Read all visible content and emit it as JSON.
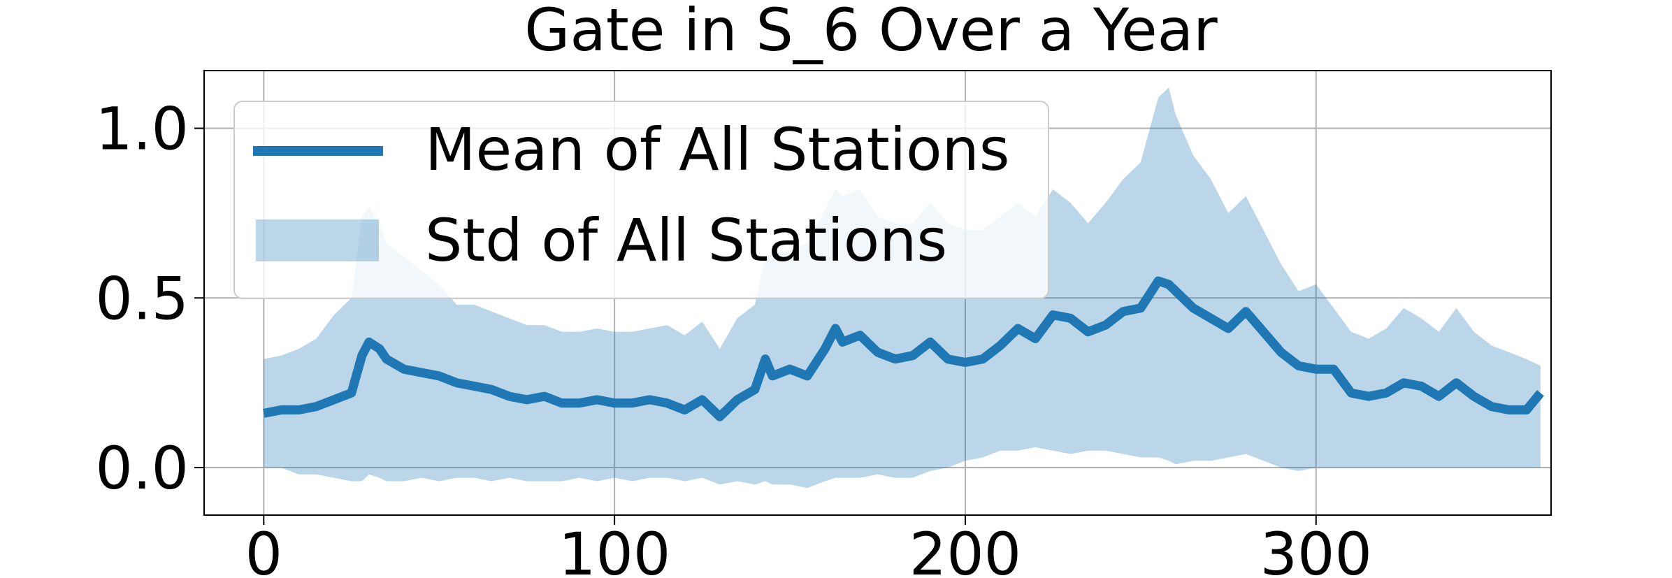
{
  "chart_data": {
    "type": "line",
    "title": "Gate in S_6 Over a Year",
    "xlabel": "",
    "ylabel": "",
    "xlim": [
      -17,
      367
    ],
    "ylim": [
      -0.14,
      1.17
    ],
    "xticks": [
      0,
      100,
      200,
      300
    ],
    "yticks": [
      0.0,
      0.5,
      1.0
    ],
    "xtick_labels": [
      "0",
      "100",
      "200",
      "300"
    ],
    "ytick_labels": [
      "0.0",
      "0.5",
      "1.0"
    ],
    "grid": true,
    "legend": {
      "placement": "upper-left",
      "entries": [
        {
          "label": "Mean of All Stations",
          "kind": "line"
        },
        {
          "label": "Std of All Stations",
          "kind": "band"
        }
      ]
    },
    "colors": {
      "mean_line": "#1f77b4",
      "std_band": "#1f77b4",
      "std_band_alpha": 0.3
    },
    "series": [
      {
        "name": "Mean of All Stations",
        "x": [
          0,
          5,
          10,
          15,
          20,
          25,
          28,
          30,
          33,
          35,
          40,
          45,
          50,
          55,
          60,
          65,
          70,
          75,
          80,
          85,
          90,
          95,
          100,
          105,
          110,
          115,
          120,
          125,
          130,
          135,
          140,
          143,
          145,
          150,
          155,
          160,
          163,
          165,
          170,
          175,
          180,
          185,
          190,
          195,
          200,
          205,
          210,
          215,
          220,
          225,
          230,
          235,
          240,
          245,
          250,
          255,
          258,
          260,
          265,
          270,
          275,
          280,
          285,
          290,
          295,
          300,
          305,
          310,
          315,
          320,
          325,
          330,
          335,
          340,
          345,
          350,
          355,
          360,
          364
        ],
        "y": [
          0.16,
          0.17,
          0.17,
          0.18,
          0.2,
          0.22,
          0.33,
          0.37,
          0.35,
          0.32,
          0.29,
          0.28,
          0.27,
          0.25,
          0.24,
          0.23,
          0.21,
          0.2,
          0.21,
          0.19,
          0.19,
          0.2,
          0.19,
          0.19,
          0.2,
          0.19,
          0.17,
          0.2,
          0.15,
          0.2,
          0.23,
          0.32,
          0.27,
          0.29,
          0.27,
          0.35,
          0.41,
          0.37,
          0.39,
          0.34,
          0.32,
          0.33,
          0.37,
          0.32,
          0.31,
          0.32,
          0.36,
          0.41,
          0.38,
          0.45,
          0.44,
          0.4,
          0.42,
          0.46,
          0.47,
          0.55,
          0.54,
          0.52,
          0.47,
          0.44,
          0.41,
          0.46,
          0.4,
          0.34,
          0.3,
          0.29,
          0.29,
          0.22,
          0.21,
          0.22,
          0.25,
          0.24,
          0.21,
          0.25,
          0.21,
          0.18,
          0.17,
          0.17,
          0.22
        ]
      },
      {
        "name": "Std of All Stations",
        "kind": "band",
        "x": [
          0,
          5,
          10,
          15,
          20,
          25,
          28,
          30,
          33,
          35,
          40,
          45,
          50,
          55,
          60,
          65,
          70,
          75,
          80,
          85,
          90,
          95,
          100,
          105,
          110,
          115,
          120,
          125,
          130,
          135,
          140,
          143,
          145,
          150,
          155,
          160,
          163,
          165,
          170,
          175,
          180,
          185,
          190,
          195,
          200,
          205,
          210,
          215,
          220,
          225,
          230,
          235,
          240,
          245,
          250,
          255,
          258,
          260,
          265,
          270,
          275,
          280,
          285,
          290,
          295,
          300,
          305,
          310,
          315,
          320,
          325,
          330,
          335,
          340,
          345,
          350,
          355,
          360,
          364
        ],
        "upper": [
          0.32,
          0.33,
          0.35,
          0.38,
          0.45,
          0.5,
          0.74,
          0.77,
          0.72,
          0.66,
          0.62,
          0.58,
          0.54,
          0.48,
          0.48,
          0.46,
          0.44,
          0.42,
          0.42,
          0.4,
          0.4,
          0.41,
          0.4,
          0.4,
          0.41,
          0.42,
          0.39,
          0.43,
          0.35,
          0.44,
          0.48,
          0.62,
          0.63,
          0.64,
          0.66,
          0.76,
          0.82,
          0.8,
          0.82,
          0.74,
          0.72,
          0.72,
          0.78,
          0.72,
          0.7,
          0.7,
          0.74,
          0.78,
          0.74,
          0.82,
          0.78,
          0.72,
          0.78,
          0.85,
          0.9,
          1.09,
          1.12,
          1.04,
          0.92,
          0.85,
          0.75,
          0.8,
          0.7,
          0.6,
          0.52,
          0.54,
          0.47,
          0.4,
          0.38,
          0.41,
          0.47,
          0.44,
          0.4,
          0.47,
          0.4,
          0.36,
          0.34,
          0.32,
          0.3
        ],
        "lower": [
          0.0,
          0.0,
          -0.02,
          -0.02,
          -0.03,
          -0.04,
          -0.04,
          -0.02,
          -0.03,
          -0.04,
          -0.04,
          -0.03,
          -0.04,
          -0.03,
          -0.03,
          -0.04,
          -0.03,
          -0.04,
          -0.04,
          -0.04,
          -0.03,
          -0.04,
          -0.03,
          -0.04,
          -0.03,
          -0.03,
          -0.04,
          -0.03,
          -0.05,
          -0.04,
          -0.05,
          -0.04,
          -0.05,
          -0.05,
          -0.06,
          -0.04,
          -0.03,
          -0.03,
          -0.03,
          -0.02,
          -0.03,
          -0.03,
          -0.01,
          0.0,
          0.02,
          0.03,
          0.05,
          0.05,
          0.06,
          0.05,
          0.04,
          0.05,
          0.05,
          0.04,
          0.03,
          0.03,
          0.02,
          0.01,
          0.02,
          0.02,
          0.03,
          0.04,
          0.02,
          0.0,
          -0.01,
          0.0,
          0.0,
          0.0,
          0.0,
          0.0,
          0.0,
          0.0,
          0.0,
          0.0,
          0.0,
          0.0,
          0.0,
          0.0,
          0.0
        ]
      }
    ]
  }
}
